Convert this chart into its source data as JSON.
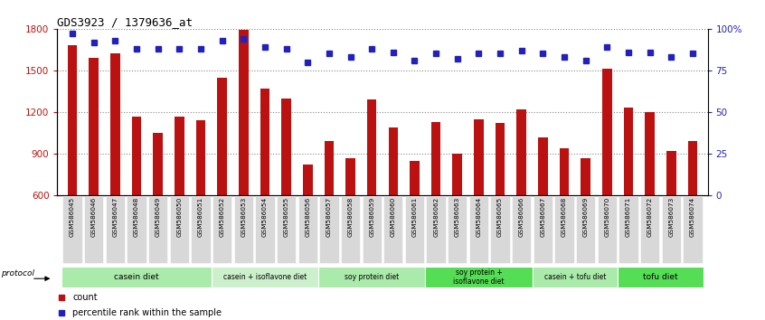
{
  "title": "GDS3923 / 1379636_at",
  "samples": [
    "GSM586045",
    "GSM586046",
    "GSM586047",
    "GSM586048",
    "GSM586049",
    "GSM586050",
    "GSM586051",
    "GSM586052",
    "GSM586053",
    "GSM586054",
    "GSM586055",
    "GSM586056",
    "GSM586057",
    "GSM586058",
    "GSM586059",
    "GSM586060",
    "GSM586061",
    "GSM586062",
    "GSM586063",
    "GSM586064",
    "GSM586065",
    "GSM586066",
    "GSM586067",
    "GSM586068",
    "GSM586069",
    "GSM586070",
    "GSM586071",
    "GSM586072",
    "GSM586073",
    "GSM586074"
  ],
  "counts": [
    1680,
    1590,
    1620,
    1170,
    1050,
    1170,
    1140,
    1450,
    1790,
    1370,
    1300,
    820,
    990,
    870,
    1290,
    1090,
    850,
    1130,
    900,
    1150,
    1120,
    1220,
    1020,
    940,
    870,
    1510,
    1230,
    1200,
    920,
    990
  ],
  "percentile_ranks": [
    97,
    92,
    93,
    88,
    88,
    88,
    88,
    93,
    94,
    89,
    88,
    80,
    85,
    83,
    88,
    86,
    81,
    85,
    82,
    85,
    85,
    87,
    85,
    83,
    81,
    89,
    86,
    86,
    83,
    85
  ],
  "groups": [
    {
      "label": "casein diet",
      "start": 0,
      "end": 7,
      "color": "#aaeaaa"
    },
    {
      "label": "casein + isoflavone diet",
      "start": 7,
      "end": 12,
      "color": "#ccf0cc"
    },
    {
      "label": "soy protein diet",
      "start": 12,
      "end": 17,
      "color": "#aaeaaa"
    },
    {
      "label": "soy protein +\nisoflavone diet",
      "start": 17,
      "end": 22,
      "color": "#55dd55"
    },
    {
      "label": "casein + tofu diet",
      "start": 22,
      "end": 26,
      "color": "#aaeaaa"
    },
    {
      "label": "tofu diet",
      "start": 26,
      "end": 30,
      "color": "#55dd55"
    }
  ],
  "ylim": [
    600,
    1800
  ],
  "yticks_left": [
    600,
    900,
    1200,
    1500,
    1800
  ],
  "yticks_right_pct": [
    0,
    25,
    50,
    75,
    100
  ],
  "y2labels": [
    "0",
    "25",
    "50",
    "75",
    "100%"
  ],
  "bar_color": "#bb1111",
  "dot_color": "#2222bb",
  "background_color": "#ffffff",
  "grid_color": "#888888",
  "xticklabel_bg": "#d8d8d8"
}
